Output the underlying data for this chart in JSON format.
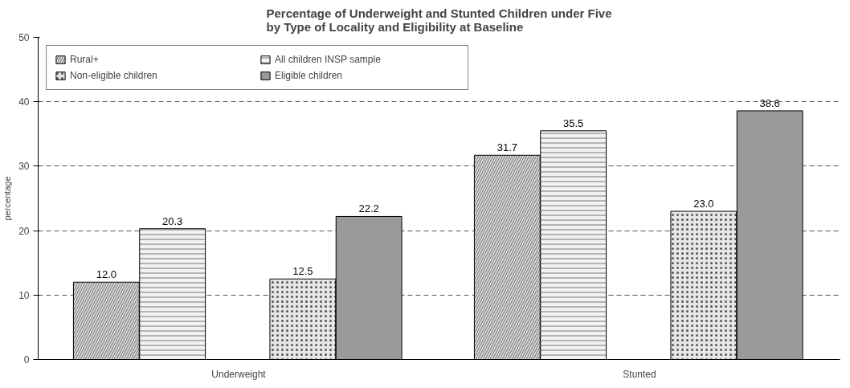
{
  "chart_data": {
    "type": "bar",
    "title": "Percentage of Underweight and Stunted Children under Five\nby Type of Locality and Eligibility at Baseline",
    "ylabel": "percentage",
    "categories": [
      "Underweight",
      "Stunted"
    ],
    "series": [
      {
        "name": "Rural+",
        "color": "#d9d9d9",
        "values": [
          12.0,
          31.7
        ],
        "value_labels": [
          "12.0",
          "31.7"
        ]
      },
      {
        "name": "All children INSP sample",
        "color": "#f2f2f2",
        "values": [
          20.3,
          35.5
        ],
        "value_labels": [
          "20.3",
          "35.5"
        ]
      },
      {
        "name": "Non-eligible children",
        "color": "#e6e6e6",
        "values": [
          12.5,
          23.0
        ],
        "value_labels": [
          "12.5",
          "23.0"
        ]
      },
      {
        "name": "Eligible children",
        "color": "#9a9a9a",
        "values": [
          22.2,
          38.6
        ],
        "value_labels": [
          "22.2",
          "38.6"
        ]
      }
    ],
    "ylim": [
      0,
      50
    ],
    "yticks": [
      0,
      10,
      20,
      30,
      40,
      50
    ],
    "grid": "y",
    "legend": "top left"
  }
}
